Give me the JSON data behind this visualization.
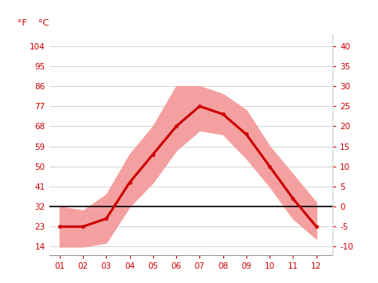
{
  "months": [
    1,
    2,
    3,
    4,
    5,
    6,
    7,
    8,
    9,
    10,
    11,
    12
  ],
  "month_labels": [
    "01",
    "02",
    "03",
    "04",
    "05",
    "06",
    "07",
    "08",
    "09",
    "10",
    "11",
    "12"
  ],
  "avg_temp": [
    -5,
    -5,
    -3,
    6,
    13,
    20,
    25,
    23,
    18,
    10,
    2,
    -5
  ],
  "temp_high": [
    0,
    -1,
    3,
    13,
    20,
    30,
    30,
    28,
    24,
    15,
    8,
    1
  ],
  "temp_low": [
    -10,
    -10,
    -9,
    0,
    6,
    14,
    19,
    18,
    12,
    5,
    -3,
    -8
  ],
  "line_color": "#cc0000",
  "band_color": "#f4a0a0",
  "zero_line_color": "#000000",
  "background_color": "#ffffff",
  "grid_color": "#cccccc",
  "yticks_c": [
    -10,
    -5,
    0,
    5,
    10,
    15,
    20,
    25,
    30,
    35,
    40
  ],
  "yticks_f": [
    14,
    23,
    32,
    41,
    50,
    59,
    68,
    77,
    86,
    95,
    104
  ],
  "ylim": [
    -12,
    43
  ],
  "xlim": [
    0.55,
    12.7
  ],
  "label_f": "°F",
  "label_c": "°C",
  "label_color": "#cc0000",
  "label_fontsize": 8,
  "tick_fontsize": 7.5
}
